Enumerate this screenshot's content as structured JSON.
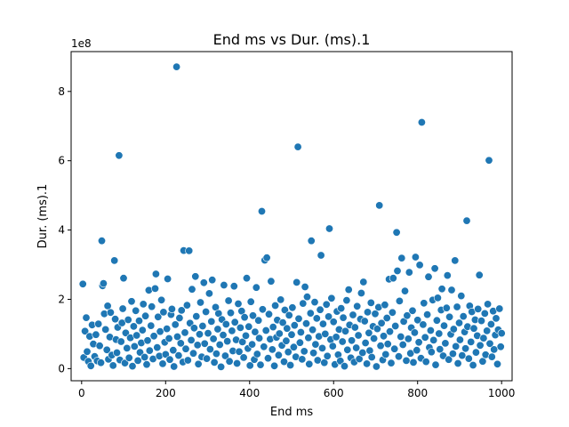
{
  "chart_data": {
    "type": "scatter",
    "title": "End ms vs Dur. (ms).1",
    "xlabel": "End ms",
    "ylabel": "Dur. (ms).1",
    "y_offset_label": "1e8",
    "xlim": [
      -25,
      1025
    ],
    "ylim": [
      -3.5,
      91.5
    ],
    "y_unit_scale": 100000000,
    "x_ticks": [
      {
        "value": 0,
        "label": "0"
      },
      {
        "value": 200,
        "label": "200"
      },
      {
        "value": 400,
        "label": "400"
      },
      {
        "value": 600,
        "label": "600"
      },
      {
        "value": 800,
        "label": "800"
      },
      {
        "value": 1000,
        "label": "1000"
      }
    ],
    "y_ticks": [
      {
        "value": 0,
        "label": "0"
      },
      {
        "value": 20,
        "label": "2"
      },
      {
        "value": 40,
        "label": "4"
      },
      {
        "value": 60,
        "label": "6"
      },
      {
        "value": 80,
        "label": "8"
      }
    ],
    "grid": false,
    "legend": "none",
    "point_color": "#1f77b4",
    "points": [
      [
        3,
        24.4
      ],
      [
        5,
        3.2
      ],
      [
        8,
        10.8
      ],
      [
        11,
        14.7
      ],
      [
        13,
        4.9
      ],
      [
        16,
        2.1
      ],
      [
        19,
        9.3
      ],
      [
        22,
        0.8
      ],
      [
        25,
        12.6
      ],
      [
        28,
        7.1
      ],
      [
        31,
        3.5
      ],
      [
        34,
        9.8
      ],
      [
        37,
        2.2
      ],
      [
        40,
        12.9
      ],
      [
        43,
        6.6
      ],
      [
        46,
        1.7
      ],
      [
        48,
        36.9
      ],
      [
        50,
        23.9
      ],
      [
        52,
        24.6
      ],
      [
        54,
        15.8
      ],
      [
        57,
        11.3
      ],
      [
        60,
        5.4
      ],
      [
        62,
        18.1
      ],
      [
        64,
        2.7
      ],
      [
        67,
        9.1
      ],
      [
        69,
        16.2
      ],
      [
        72,
        3.9
      ],
      [
        75,
        0.9
      ],
      [
        78,
        31.2
      ],
      [
        80,
        14.3
      ],
      [
        82,
        8.4
      ],
      [
        84,
        4.6
      ],
      [
        86,
        11.9
      ],
      [
        89,
        61.5
      ],
      [
        91,
        2.5
      ],
      [
        94,
        7.8
      ],
      [
        96,
        13.2
      ],
      [
        98,
        17.3
      ],
      [
        100,
        26.1
      ],
      [
        103,
        1.6
      ],
      [
        105,
        10.3
      ],
      [
        108,
        5.9
      ],
      [
        111,
        14.1
      ],
      [
        113,
        3.1
      ],
      [
        116,
        8.9
      ],
      [
        119,
        19.4
      ],
      [
        121,
        0.7
      ],
      [
        124,
        12.2
      ],
      [
        126,
        6.4
      ],
      [
        129,
        16.7
      ],
      [
        131,
        9.6
      ],
      [
        134,
        2.3
      ],
      [
        137,
        13.8
      ],
      [
        139,
        4.7
      ],
      [
        142,
        7.4
      ],
      [
        145,
        11.1
      ],
      [
        147,
        18.6
      ],
      [
        150,
        3.3
      ],
      [
        152,
        15.2
      ],
      [
        155,
        1.2
      ],
      [
        157,
        8.1
      ],
      [
        160,
        22.6
      ],
      [
        162,
        5.2
      ],
      [
        165,
        12.4
      ],
      [
        167,
        17.9
      ],
      [
        170,
        2.8
      ],
      [
        172,
        9.4
      ],
      [
        175,
        23.1
      ],
      [
        177,
        27.3
      ],
      [
        180,
        6.1
      ],
      [
        182,
        14.9
      ],
      [
        185,
        3.6
      ],
      [
        187,
        10.7
      ],
      [
        190,
        19.8
      ],
      [
        193,
        1.4
      ],
      [
        195,
        16.3
      ],
      [
        198,
        7.6
      ],
      [
        200,
        4.1
      ],
      [
        203,
        11.5
      ],
      [
        205,
        25.9
      ],
      [
        208,
        8.7
      ],
      [
        210,
        2.6
      ],
      [
        213,
        15.6
      ],
      [
        215,
        17.2
      ],
      [
        218,
        5.3
      ],
      [
        220,
        0.6
      ],
      [
        223,
        12.7
      ],
      [
        226,
        87.1
      ],
      [
        228,
        9.2
      ],
      [
        231,
        3.8
      ],
      [
        233,
        14.6
      ],
      [
        236,
        7.3
      ],
      [
        238,
        16.8
      ],
      [
        241,
        1.9
      ],
      [
        243,
        34.1
      ],
      [
        246,
        10.4
      ],
      [
        248,
        5.7
      ],
      [
        251,
        18.3
      ],
      [
        253,
        2.4
      ],
      [
        256,
        34.0
      ],
      [
        258,
        13.1
      ],
      [
        261,
        8.2
      ],
      [
        263,
        22.9
      ],
      [
        266,
        4.4
      ],
      [
        268,
        11.7
      ],
      [
        271,
        26.6
      ],
      [
        273,
        15.1
      ],
      [
        276,
        6.8
      ],
      [
        278,
        1.3
      ],
      [
        281,
        9.9
      ],
      [
        283,
        19.1
      ],
      [
        286,
        3.4
      ],
      [
        288,
        12.3
      ],
      [
        291,
        24.8
      ],
      [
        293,
        7.2
      ],
      [
        296,
        16.4
      ],
      [
        298,
        2.9
      ],
      [
        301,
        10.2
      ],
      [
        304,
        21.7
      ],
      [
        306,
        5.6
      ],
      [
        309,
        13.6
      ],
      [
        311,
        25.6
      ],
      [
        314,
        8.6
      ],
      [
        316,
        1.8
      ],
      [
        319,
        17.7
      ],
      [
        321,
        4.3
      ],
      [
        324,
        11.4
      ],
      [
        326,
        15.9
      ],
      [
        329,
        6.9
      ],
      [
        332,
        0.5
      ],
      [
        334,
        14.2
      ],
      [
        337,
        9.7
      ],
      [
        339,
        24.1
      ],
      [
        342,
        3.7
      ],
      [
        344,
        12.8
      ],
      [
        347,
        7.9
      ],
      [
        350,
        19.6
      ],
      [
        352,
        2.1
      ],
      [
        355,
        16.1
      ],
      [
        358,
        10.9
      ],
      [
        360,
        5.1
      ],
      [
        363,
        23.8
      ],
      [
        365,
        13.4
      ],
      [
        368,
        8.3
      ],
      [
        370,
        1.5
      ],
      [
        373,
        18.7
      ],
      [
        375,
        4.9
      ],
      [
        378,
        11.8
      ],
      [
        381,
        16.6
      ],
      [
        383,
        7.7
      ],
      [
        386,
        3.2
      ],
      [
        388,
        14.8
      ],
      [
        391,
        9.5
      ],
      [
        393,
        26.1
      ],
      [
        396,
        5.8
      ],
      [
        398,
        12.1
      ],
      [
        401,
        0.9
      ],
      [
        403,
        19.3
      ],
      [
        406,
        7.0
      ],
      [
        408,
        15.3
      ],
      [
        411,
        2.6
      ],
      [
        413,
        10.6
      ],
      [
        416,
        23.4
      ],
      [
        418,
        4.2
      ],
      [
        421,
        13.9
      ],
      [
        423,
        8.8
      ],
      [
        426,
        1.1
      ],
      [
        429,
        45.4
      ],
      [
        431,
        17.1
      ],
      [
        434,
        6.3
      ],
      [
        436,
        31.3
      ],
      [
        439,
        11.0
      ],
      [
        441,
        32.0
      ],
      [
        444,
        3.0
      ],
      [
        446,
        15.7
      ],
      [
        449,
        8.5
      ],
      [
        451,
        25.2
      ],
      [
        454,
        5.5
      ],
      [
        456,
        12.0
      ],
      [
        459,
        0.8
      ],
      [
        461,
        18.2
      ],
      [
        464,
        9.0
      ],
      [
        466,
        14.0
      ],
      [
        469,
        3.9
      ],
      [
        471,
        10.1
      ],
      [
        474,
        19.9
      ],
      [
        477,
        6.7
      ],
      [
        479,
        13.3
      ],
      [
        482,
        2.0
      ],
      [
        484,
        16.9
      ],
      [
        487,
        8.0
      ],
      [
        489,
        11.6
      ],
      [
        492,
        4.8
      ],
      [
        494,
        15.4
      ],
      [
        497,
        1.0
      ],
      [
        500,
        9.8
      ],
      [
        502,
        17.6
      ],
      [
        505,
        6.2
      ],
      [
        507,
        12.5
      ],
      [
        510,
        3.4
      ],
      [
        512,
        24.9
      ],
      [
        515,
        64.0
      ],
      [
        517,
        14.4
      ],
      [
        520,
        7.5
      ],
      [
        522,
        10.5
      ],
      [
        525,
        2.7
      ],
      [
        527,
        18.8
      ],
      [
        530,
        5.0
      ],
      [
        532,
        23.6
      ],
      [
        535,
        13.0
      ],
      [
        537,
        20.7
      ],
      [
        540,
        8.9
      ],
      [
        542,
        1.3
      ],
      [
        545,
        16.0
      ],
      [
        547,
        36.9
      ],
      [
        550,
        11.2
      ],
      [
        552,
        4.5
      ],
      [
        555,
        19.2
      ],
      [
        557,
        7.0
      ],
      [
        560,
        14.5
      ],
      [
        562,
        2.4
      ],
      [
        565,
        9.3
      ],
      [
        568,
        17.0
      ],
      [
        570,
        32.7
      ],
      [
        573,
        5.9
      ],
      [
        575,
        12.9
      ],
      [
        578,
        1.7
      ],
      [
        580,
        10.0
      ],
      [
        583,
        18.5
      ],
      [
        585,
        3.6
      ],
      [
        588,
        15.0
      ],
      [
        590,
        40.4
      ],
      [
        593,
        8.4
      ],
      [
        595,
        20.3
      ],
      [
        598,
        6.5
      ],
      [
        600,
        13.5
      ],
      [
        603,
        1.2
      ],
      [
        606,
        9.1
      ],
      [
        608,
        16.5
      ],
      [
        611,
        4.0
      ],
      [
        613,
        11.3
      ],
      [
        616,
        2.2
      ],
      [
        618,
        17.4
      ],
      [
        621,
        7.8
      ],
      [
        623,
        14.7
      ],
      [
        626,
        0.7
      ],
      [
        628,
        10.8
      ],
      [
        631,
        19.7
      ],
      [
        633,
        5.4
      ],
      [
        636,
        22.8
      ],
      [
        638,
        12.6
      ],
      [
        641,
        3.1
      ],
      [
        643,
        8.1
      ],
      [
        646,
        15.5
      ],
      [
        649,
        1.9
      ],
      [
        651,
        11.9
      ],
      [
        654,
        6.0
      ],
      [
        656,
        18.0
      ],
      [
        659,
        9.6
      ],
      [
        661,
        2.8
      ],
      [
        664,
        14.3
      ],
      [
        666,
        21.8
      ],
      [
        669,
        4.6
      ],
      [
        671,
        25.0
      ],
      [
        674,
        13.7
      ],
      [
        676,
        7.4
      ],
      [
        679,
        1.4
      ],
      [
        681,
        16.3
      ],
      [
        684,
        10.3
      ],
      [
        686,
        5.2
      ],
      [
        689,
        19.0
      ],
      [
        691,
        3.3
      ],
      [
        694,
        12.2
      ],
      [
        696,
        8.7
      ],
      [
        699,
        15.8
      ],
      [
        702,
        0.6
      ],
      [
        704,
        11.5
      ],
      [
        707,
        17.7
      ],
      [
        709,
        47.1
      ],
      [
        712,
        6.6
      ],
      [
        714,
        13.1
      ],
      [
        717,
        2.5
      ],
      [
        719,
        9.4
      ],
      [
        722,
        18.4
      ],
      [
        724,
        4.1
      ],
      [
        727,
        14.6
      ],
      [
        729,
        7.1
      ],
      [
        732,
        25.8
      ],
      [
        734,
        10.7
      ],
      [
        737,
        1.6
      ],
      [
        740,
        16.2
      ],
      [
        742,
        26.1
      ],
      [
        745,
        5.7
      ],
      [
        747,
        12.3
      ],
      [
        750,
        39.3
      ],
      [
        752,
        28.2
      ],
      [
        755,
        3.5
      ],
      [
        757,
        19.5
      ],
      [
        760,
        9.2
      ],
      [
        762,
        31.9
      ],
      [
        765,
        6.9
      ],
      [
        767,
        13.6
      ],
      [
        770,
        22.4
      ],
      [
        773,
        2.3
      ],
      [
        775,
        15.3
      ],
      [
        778,
        8.6
      ],
      [
        780,
        27.8
      ],
      [
        783,
        4.4
      ],
      [
        785,
        11.8
      ],
      [
        788,
        16.7
      ],
      [
        790,
        1.8
      ],
      [
        793,
        10.4
      ],
      [
        795,
        32.2
      ],
      [
        798,
        5.3
      ],
      [
        800,
        14.0
      ],
      [
        803,
        7.6
      ],
      [
        805,
        29.9
      ],
      [
        808,
        3.0
      ],
      [
        810,
        71.1
      ],
      [
        813,
        12.7
      ],
      [
        815,
        18.9
      ],
      [
        818,
        9.0
      ],
      [
        820,
        2.0
      ],
      [
        823,
        15.6
      ],
      [
        826,
        26.5
      ],
      [
        828,
        6.1
      ],
      [
        831,
        11.0
      ],
      [
        833,
        4.8
      ],
      [
        836,
        19.8
      ],
      [
        838,
        8.2
      ],
      [
        841,
        28.9
      ],
      [
        843,
        1.1
      ],
      [
        846,
        13.9
      ],
      [
        848,
        20.4
      ],
      [
        851,
        10.1
      ],
      [
        853,
        5.6
      ],
      [
        856,
        16.9
      ],
      [
        858,
        23.0
      ],
      [
        861,
        3.7
      ],
      [
        863,
        12.4
      ],
      [
        866,
        7.3
      ],
      [
        869,
        17.5
      ],
      [
        871,
        26.9
      ],
      [
        874,
        2.6
      ],
      [
        876,
        14.9
      ],
      [
        879,
        9.9
      ],
      [
        881,
        22.7
      ],
      [
        884,
        4.3
      ],
      [
        886,
        11.4
      ],
      [
        889,
        31.2
      ],
      [
        891,
        6.4
      ],
      [
        894,
        17.8
      ],
      [
        896,
        1.5
      ],
      [
        899,
        13.2
      ],
      [
        901,
        8.3
      ],
      [
        904,
        21.0
      ],
      [
        906,
        3.8
      ],
      [
        909,
        15.1
      ],
      [
        912,
        10.6
      ],
      [
        914,
        5.8
      ],
      [
        917,
        42.7
      ],
      [
        919,
        12.1
      ],
      [
        922,
        2.9
      ],
      [
        924,
        18.1
      ],
      [
        927,
        7.7
      ],
      [
        929,
        16.4
      ],
      [
        932,
        1.0
      ],
      [
        934,
        11.6
      ],
      [
        937,
        14.1
      ],
      [
        939,
        4.7
      ],
      [
        942,
        9.5
      ],
      [
        944,
        17.2
      ],
      [
        947,
        27.0
      ],
      [
        949,
        6.7
      ],
      [
        952,
        13.8
      ],
      [
        955,
        2.1
      ],
      [
        957,
        8.8
      ],
      [
        960,
        15.9
      ],
      [
        962,
        4.0
      ],
      [
        965,
        10.9
      ],
      [
        967,
        18.6
      ],
      [
        970,
        60.1
      ],
      [
        972,
        7.2
      ],
      [
        975,
        12.8
      ],
      [
        977,
        3.4
      ],
      [
        980,
        16.6
      ],
      [
        982,
        5.5
      ],
      [
        985,
        9.7
      ],
      [
        987,
        14.5
      ],
      [
        990,
        1.3
      ],
      [
        992,
        11.2
      ],
      [
        995,
        17.3
      ],
      [
        998,
        6.3
      ],
      [
        1000,
        10.2
      ]
    ]
  }
}
